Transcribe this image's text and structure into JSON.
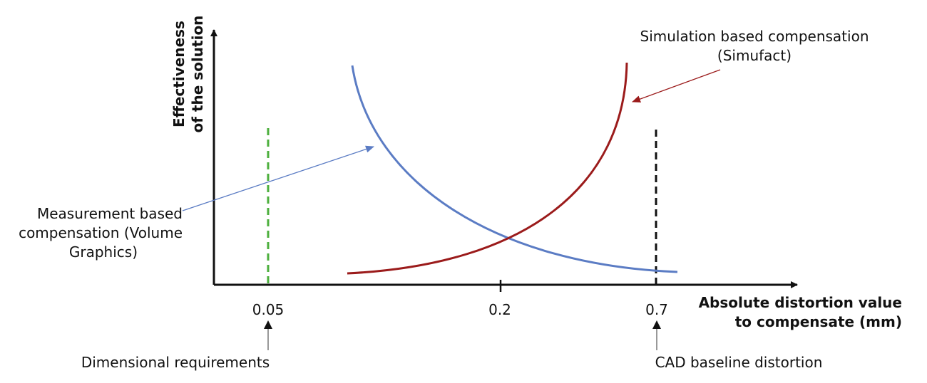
{
  "y_axis_label": {
    "line1": "Effectiveness",
    "line2": "of the solution"
  },
  "x_axis_label": {
    "line1": "Absolute distortion value",
    "line2": "to compensate (mm)"
  },
  "x_ticks": [
    "0.05",
    "0.2",
    "0.7"
  ],
  "curves": {
    "simulation": {
      "label_line1": "Simulation based compensation",
      "label_line2": "(Simufact)",
      "color": "#9b1b1b"
    },
    "measurement": {
      "label_line1": "Measurement based",
      "label_line2": "compensation (Volume",
      "label_line3": "Graphics)",
      "color": "#5b7cc4"
    }
  },
  "markers": {
    "dimensional": {
      "label": "Dimensional requirements",
      "color": "#4caf3c"
    },
    "cad": {
      "label": "CAD baseline distortion",
      "color": "#111111"
    }
  }
}
